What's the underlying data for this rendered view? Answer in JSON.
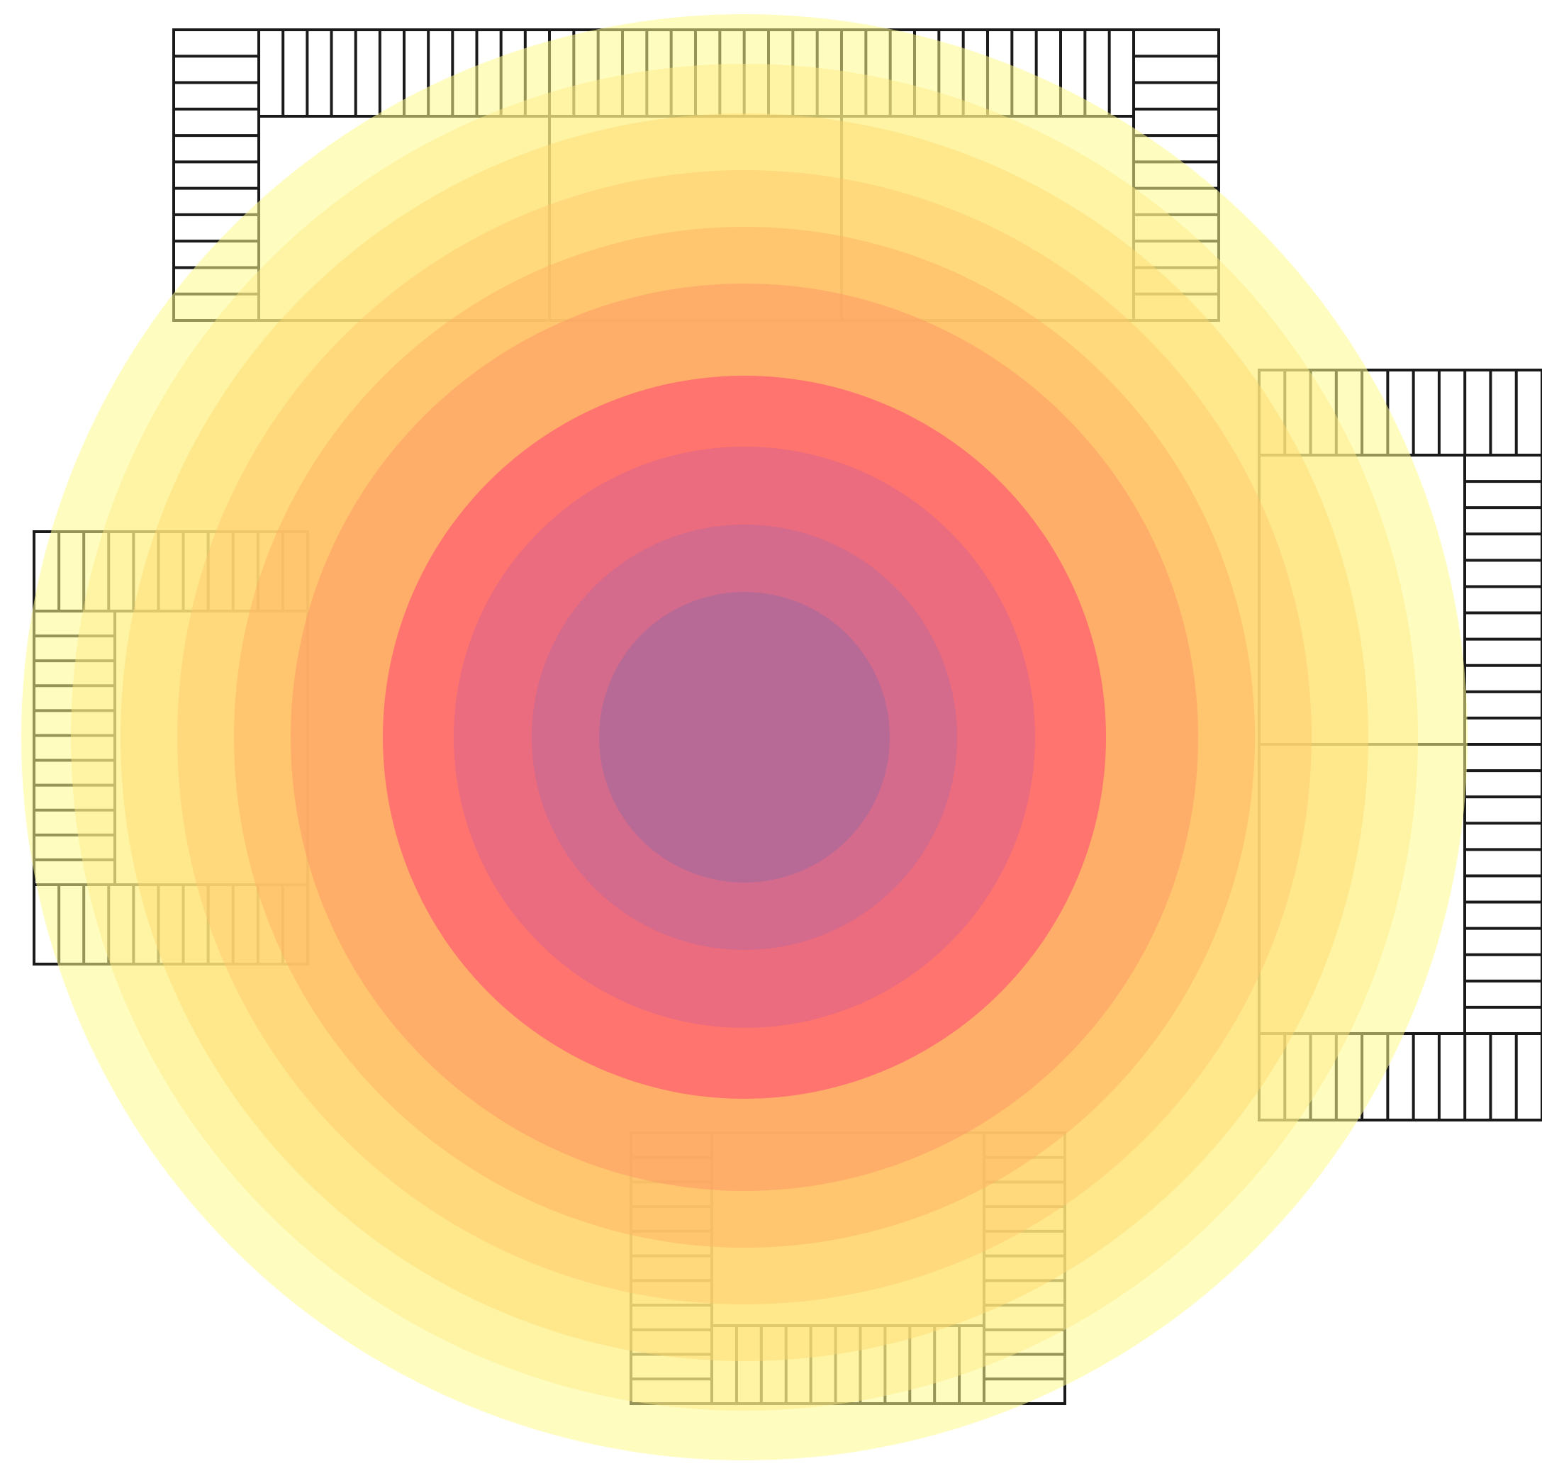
{
  "diagram": {
    "kind": "floor-plan-heatmap",
    "colors": {
      "background": "#ffffff",
      "line": "#1a1a1a",
      "heat_outer": "#fffa8c",
      "heat_mid1": "#ffe070",
      "heat_mid2": "#ffc860",
      "heat_mid3": "#ffa868",
      "heat_hot": "#ff6a6e",
      "heat_core_edge": "#e06a8a",
      "heat_core": "#b06a98"
    },
    "heat_bands": [
      "#fffa8c",
      "#ffea80",
      "#ffda70",
      "#ffc866",
      "#ffb264",
      "#ff9a66",
      "#ff6a6e",
      "#e46a86",
      "#cc6a90",
      "#b06a98"
    ],
    "blocks": [
      {
        "name": "block-north"
      },
      {
        "name": "block-west"
      },
      {
        "name": "block-east"
      },
      {
        "name": "block-south"
      }
    ]
  }
}
